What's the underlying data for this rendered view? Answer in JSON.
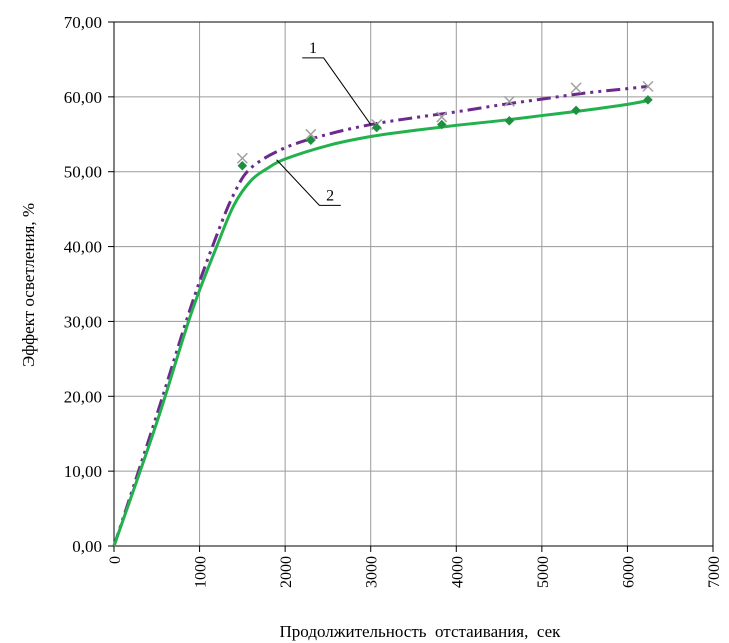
{
  "chart_data": {
    "type": "line",
    "title": "",
    "xlabel": "Продолжительность  отстаивания,  сек",
    "ylabel": "Эффект осветления, %",
    "xlim": [
      0,
      7000
    ],
    "ylim": [
      0,
      70
    ],
    "grid": true,
    "x_ticks": [
      "0",
      "1000",
      "2000",
      "3000",
      "4000",
      "5000",
      "6000",
      "7000"
    ],
    "y_ticks": [
      "0,00",
      "10,00",
      "20,00",
      "30,00",
      "40,00",
      "50,00",
      "60,00",
      "70,00"
    ],
    "series": [
      {
        "name": "1",
        "color": "#6b2a8c",
        "line_style": "dash-dot",
        "marker": "x",
        "marker_color": "#a0a0a0",
        "points": [
          [
            1500,
            51.8
          ],
          [
            2300,
            55.0
          ],
          [
            3070,
            56.3
          ],
          [
            3830,
            57.3
          ],
          [
            4620,
            59.4
          ],
          [
            5400,
            61.2
          ],
          [
            6240,
            61.4
          ]
        ],
        "curve": [
          [
            0,
            0
          ],
          [
            500,
            17.5
          ],
          [
            900,
            32
          ],
          [
            1200,
            41.5
          ],
          [
            1400,
            47
          ],
          [
            1600,
            50.5
          ],
          [
            2000,
            53.2
          ],
          [
            2500,
            55
          ],
          [
            3000,
            56.3
          ],
          [
            3500,
            57.2
          ],
          [
            4000,
            58
          ],
          [
            4500,
            58.9
          ],
          [
            5000,
            59.7
          ],
          [
            5500,
            60.5
          ],
          [
            6000,
            61.1
          ],
          [
            6240,
            61.4
          ]
        ]
      },
      {
        "name": "2",
        "color": "#22b14c",
        "line_style": "solid",
        "marker": "diamond",
        "marker_color": "#1e8f3e",
        "points": [
          [
            1500,
            50.8
          ],
          [
            2300,
            54.2
          ],
          [
            3070,
            55.9
          ],
          [
            3830,
            56.3
          ],
          [
            4620,
            56.8
          ],
          [
            5400,
            58.2
          ],
          [
            6240,
            59.6
          ]
        ],
        "curve": [
          [
            0,
            0
          ],
          [
            500,
            16.5
          ],
          [
            900,
            31
          ],
          [
            1200,
            40
          ],
          [
            1400,
            45.5
          ],
          [
            1600,
            48.8
          ],
          [
            1800,
            50.5
          ],
          [
            2000,
            51.7
          ],
          [
            2500,
            53.5
          ],
          [
            3000,
            54.7
          ],
          [
            3500,
            55.5
          ],
          [
            4000,
            56.2
          ],
          [
            4500,
            56.8
          ],
          [
            5000,
            57.5
          ],
          [
            5500,
            58.2
          ],
          [
            6000,
            59
          ],
          [
            6240,
            59.5
          ]
        ]
      }
    ],
    "annotations": [
      {
        "label": "1",
        "target": [
          3000,
          56.3
        ],
        "line": [
          [
            2200,
            65.2
          ],
          [
            2450,
            65.2
          ],
          [
            3000,
            56.3
          ]
        ]
      },
      {
        "label": "2",
        "target": [
          1900,
          51.6
        ],
        "line": [
          [
            2650,
            45.5
          ],
          [
            2400,
            45.5
          ],
          [
            1900,
            51.6
          ]
        ]
      }
    ]
  }
}
